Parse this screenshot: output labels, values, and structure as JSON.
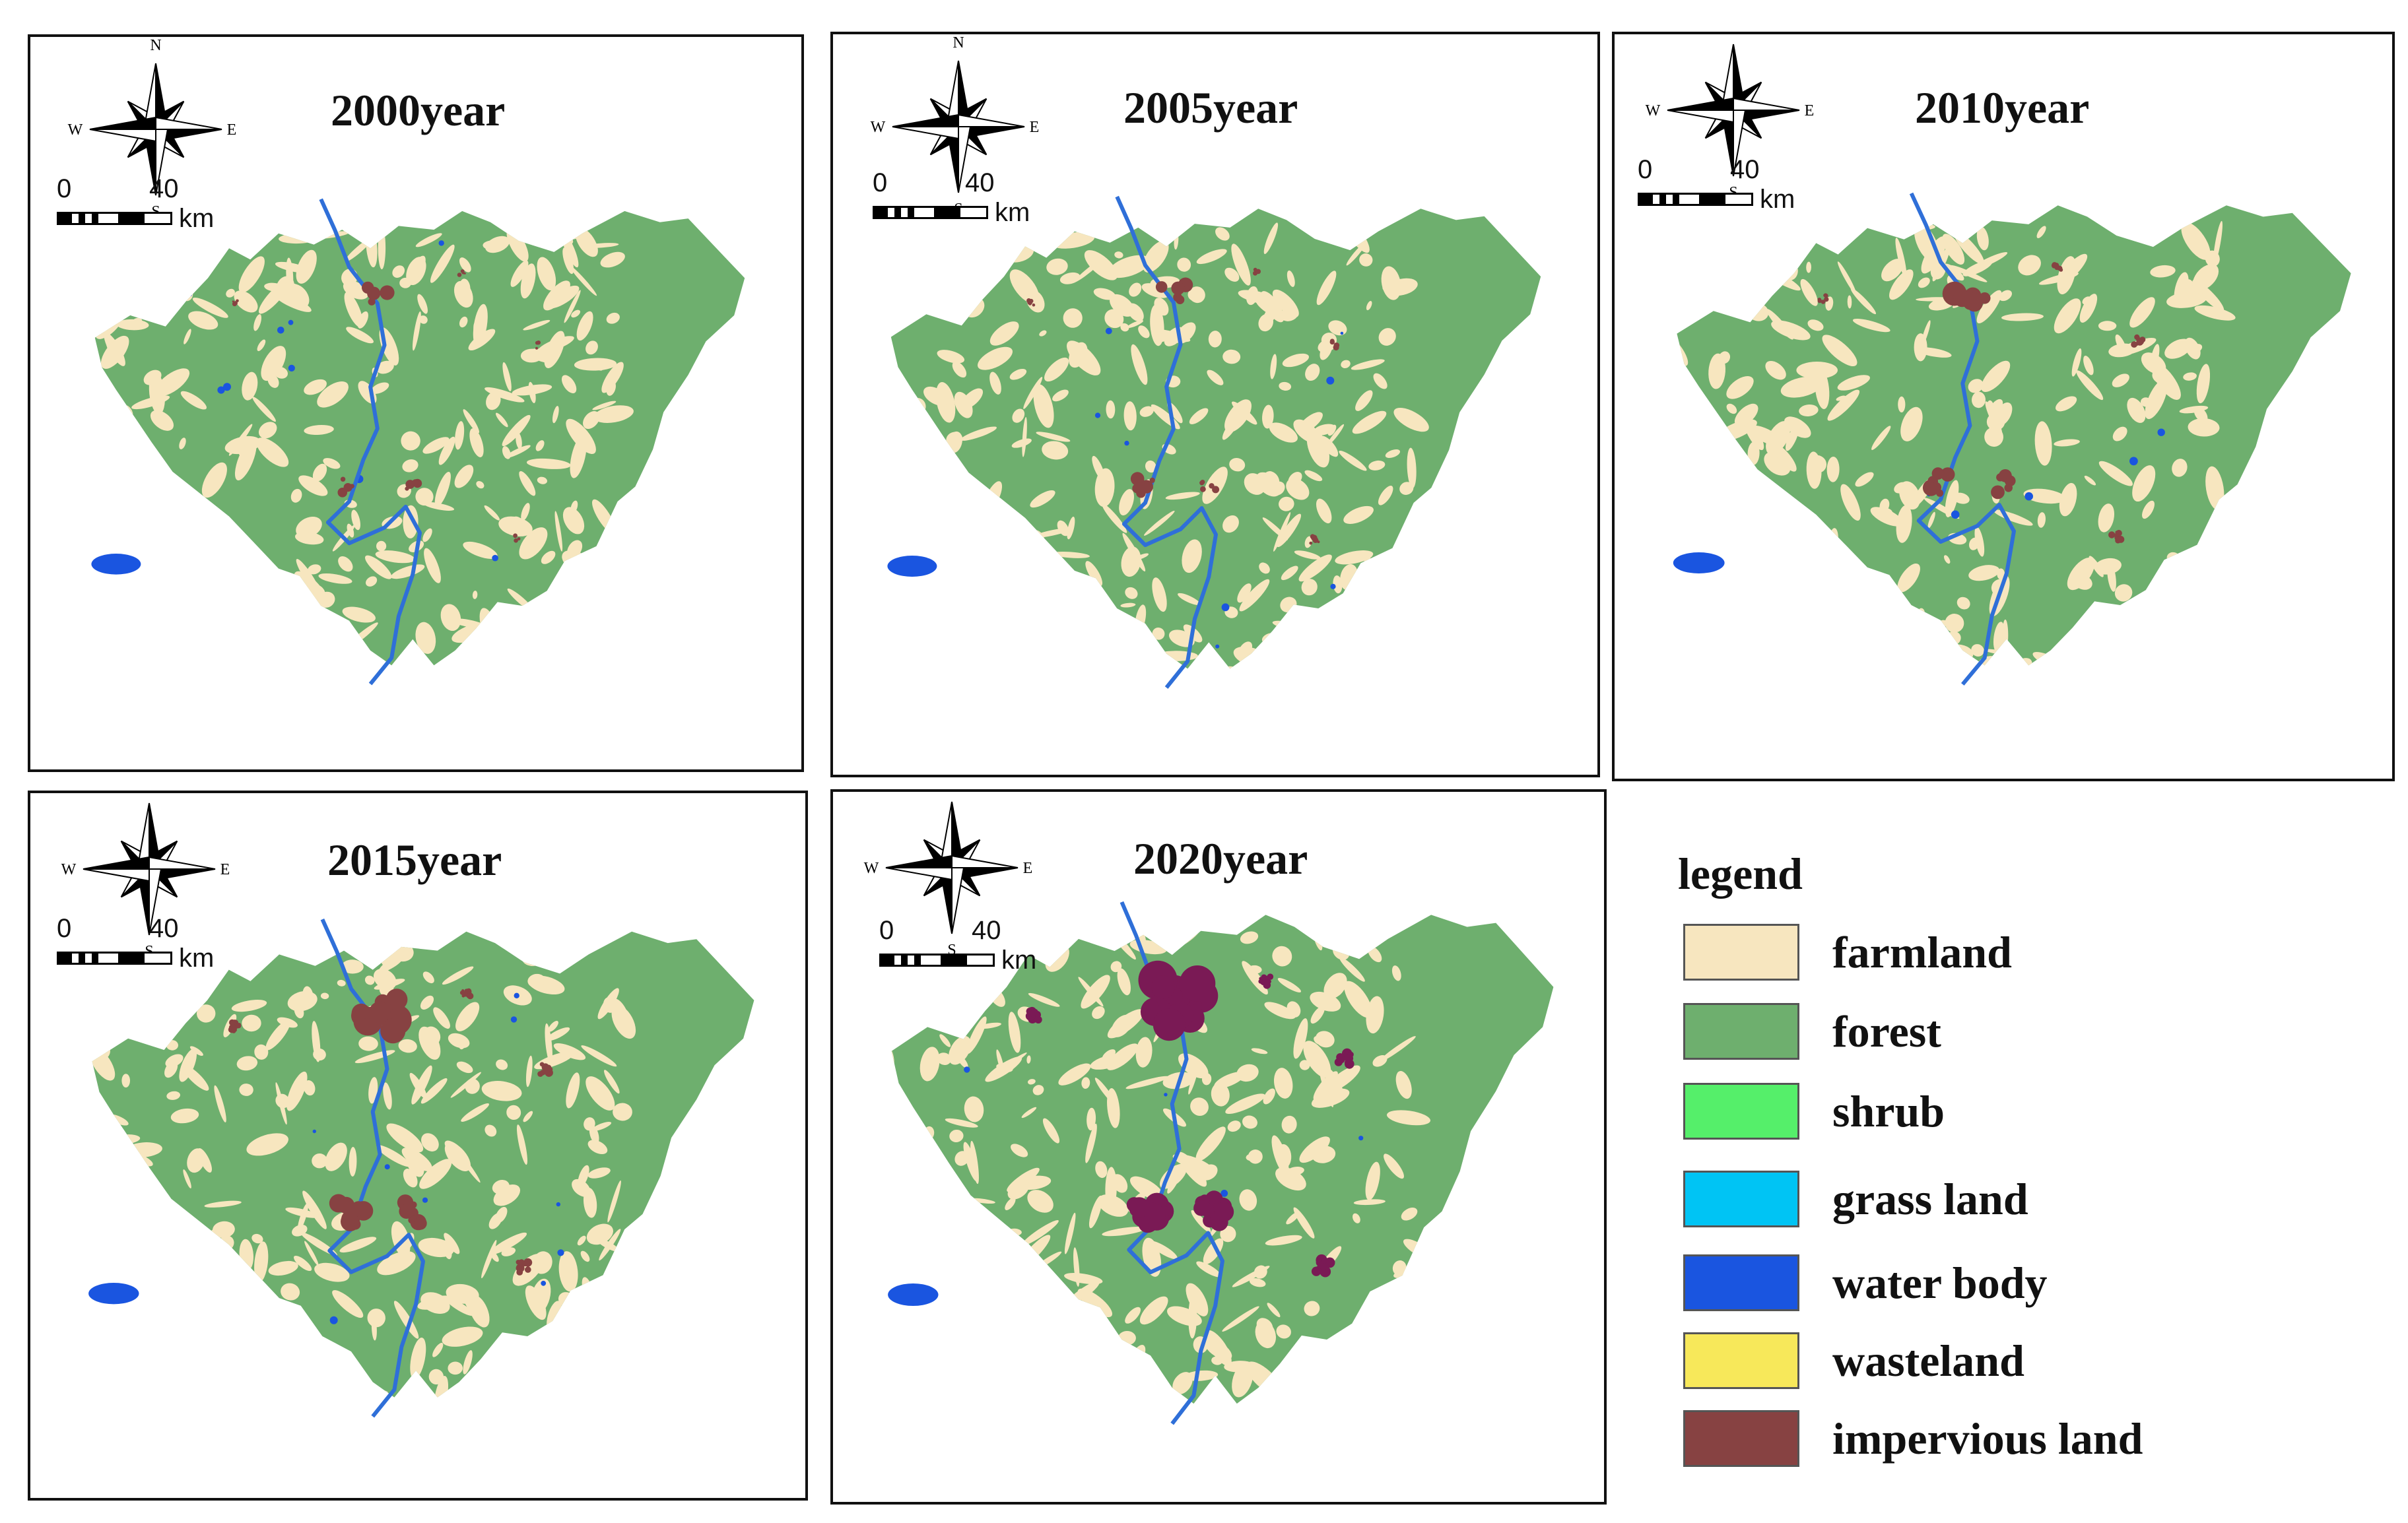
{
  "colors": {
    "farmland": "#f7e6bf",
    "forest": "#6eaf6e",
    "shrub": "#55ef6a",
    "grass_land": "#00c4f4",
    "water_body": "#1a55e0",
    "wasteland": "#f7e85a",
    "impervious_land": "#874242",
    "impervious_2020": "#7a1a55",
    "river": "#2f6fd8"
  },
  "compass": {
    "n": "N",
    "s": "S",
    "e": "E",
    "w": "W",
    "icon": "north-arrow-compass-icon"
  },
  "scale": {
    "start": "0",
    "end": "40",
    "unit": "km"
  },
  "panels": [
    {
      "title": "2000year",
      "urban_level": 0.35
    },
    {
      "title": "2005year",
      "urban_level": 0.45
    },
    {
      "title": "2010year",
      "urban_level": 0.6
    },
    {
      "title": "2015year",
      "urban_level": 0.75
    },
    {
      "title": "2020year",
      "urban_level": 1.0
    }
  ],
  "legend": {
    "title": "legend",
    "items": [
      {
        "label": "farmland",
        "key": "farmland"
      },
      {
        "label": "forest",
        "key": "forest"
      },
      {
        "label": "shrub",
        "key": "shrub"
      },
      {
        "label": "grass land",
        "key": "grass_land"
      },
      {
        "label": "water body",
        "key": "water_body"
      },
      {
        "label": "wasteland",
        "key": "wasteland"
      },
      {
        "label": "impervious land",
        "key": "impervious_land"
      }
    ]
  }
}
